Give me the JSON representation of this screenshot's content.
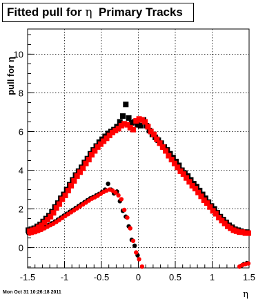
{
  "title": {
    "prefix": "Fitted pull for ",
    "symbol": "η",
    "suffix": "  Primary Tracks"
  },
  "datestamp": "Mon Oct 31 10:26:18 2011",
  "chart_data": {
    "type": "scatter",
    "title": "Fitted pull for η  Primary Tracks",
    "xlabel": "η",
    "ylabel": "pull for η",
    "xlim": [
      -1.5,
      1.5
    ],
    "ylim": [
      -1.05,
      11.3
    ],
    "grid": true,
    "xticks": [
      -1.5,
      -1,
      -0.5,
      0,
      0.5,
      1,
      1.5
    ],
    "yticks": [
      0,
      2,
      4,
      6,
      8,
      10
    ],
    "colors": {
      "black": "#000000",
      "red": "#ff0000"
    },
    "series": [
      {
        "color": "black",
        "marker": "square",
        "x": [
          -1.49,
          -1.45,
          -1.41,
          -1.37,
          -1.33,
          -1.29,
          -1.25,
          -1.21,
          -1.17,
          -1.13,
          -1.09,
          -1.05,
          -1.01,
          -0.97,
          -0.93,
          -0.89,
          -0.85,
          -0.81,
          -0.77,
          -0.73,
          -0.69,
          -0.65,
          -0.61,
          -0.57,
          -0.53,
          -0.49,
          -0.45,
          -0.41,
          -0.37,
          -0.33,
          -0.29,
          -0.25,
          -0.21,
          -0.17,
          -0.13,
          -0.09,
          -0.05,
          -0.01,
          0.03,
          0.07,
          0.11,
          0.15,
          0.19,
          0.23,
          0.27,
          0.31,
          0.35,
          0.39,
          0.43,
          0.47,
          0.51,
          0.55,
          0.59,
          0.63,
          0.67,
          0.71,
          0.75,
          0.79,
          0.83,
          0.87,
          0.91,
          0.95,
          0.99,
          1.03,
          1.07,
          1.11,
          1.15,
          1.19,
          1.23,
          1.27,
          1.31,
          1.35,
          1.39,
          1.43,
          1.47
        ],
        "y": [
          0.9,
          0.95,
          1.0,
          1.1,
          1.2,
          1.35,
          1.5,
          1.65,
          1.85,
          2.1,
          2.3,
          2.55,
          2.75,
          3.0,
          3.25,
          3.5,
          3.75,
          3.95,
          4.15,
          4.4,
          4.6,
          4.85,
          5.05,
          5.25,
          5.45,
          5.6,
          5.75,
          5.9,
          6.0,
          6.1,
          6.25,
          6.5,
          6.8,
          7.4,
          6.7,
          6.45,
          6.5,
          6.35,
          6.3,
          6.6,
          6.3,
          6.05,
          5.85,
          5.7,
          5.55,
          5.4,
          5.2,
          5.05,
          4.85,
          4.65,
          4.45,
          4.25,
          4.0,
          3.85,
          3.7,
          3.5,
          3.3,
          3.15,
          2.95,
          2.75,
          2.55,
          2.35,
          2.15,
          2.0,
          1.8,
          1.6,
          1.45,
          1.3,
          1.15,
          1.05,
          0.95,
          0.9,
          0.85,
          0.8,
          0.8
        ]
      },
      {
        "color": "black",
        "marker": "circle",
        "x": [
          -1.49,
          -1.45,
          -1.41,
          -1.37,
          -1.33,
          -1.29,
          -1.25,
          -1.21,
          -1.17,
          -1.13,
          -1.09,
          -1.05,
          -1.01,
          -0.97,
          -0.93,
          -0.89,
          -0.85,
          -0.81,
          -0.77,
          -0.73,
          -0.69,
          -0.65,
          -0.61,
          -0.57,
          -0.53,
          -0.49,
          -0.45,
          -0.41,
          -0.37,
          -0.33,
          -0.29,
          -0.25,
          -0.21,
          -0.17,
          -0.13,
          -0.09,
          -0.05,
          -0.01,
          1.39,
          1.43,
          1.47
        ],
        "y": [
          0.75,
          0.78,
          0.82,
          0.88,
          0.95,
          1.02,
          1.1,
          1.18,
          1.26,
          1.35,
          1.45,
          1.55,
          1.65,
          1.75,
          1.85,
          1.95,
          2.05,
          2.15,
          2.25,
          2.35,
          2.45,
          2.55,
          2.62,
          2.7,
          2.78,
          2.88,
          3.0,
          3.3,
          3.0,
          2.8,
          2.9,
          2.4,
          1.9,
          1.6,
          1.1,
          0.4,
          0.1,
          -0.4,
          -0.95,
          -0.85,
          -0.8
        ]
      },
      {
        "color": "red",
        "marker": "square",
        "x": [
          -1.47,
          -1.43,
          -1.39,
          -1.35,
          -1.31,
          -1.27,
          -1.23,
          -1.19,
          -1.15,
          -1.11,
          -1.07,
          -1.03,
          -0.99,
          -0.95,
          -0.91,
          -0.87,
          -0.83,
          -0.79,
          -0.75,
          -0.71,
          -0.67,
          -0.63,
          -0.59,
          -0.55,
          -0.51,
          -0.47,
          -0.43,
          -0.39,
          -0.35,
          -0.31,
          -0.27,
          -0.23,
          -0.19,
          -0.15,
          -0.11,
          -0.07,
          -0.03,
          0.01,
          0.05,
          0.09,
          0.13,
          0.17,
          0.21,
          0.25,
          0.29,
          0.33,
          0.37,
          0.41,
          0.45,
          0.49,
          0.53,
          0.57,
          0.61,
          0.65,
          0.69,
          0.73,
          0.77,
          0.81,
          0.85,
          0.89,
          0.93,
          0.97,
          1.01,
          1.05,
          1.09,
          1.13,
          1.17,
          1.21,
          1.25,
          1.29,
          1.33,
          1.37,
          1.41,
          1.45,
          1.49
        ],
        "y": [
          0.85,
          0.9,
          0.95,
          1.05,
          1.15,
          1.3,
          1.45,
          1.6,
          1.8,
          2.05,
          2.25,
          2.5,
          2.7,
          2.95,
          3.2,
          3.45,
          3.7,
          3.9,
          4.1,
          4.35,
          4.55,
          4.8,
          5.0,
          5.2,
          5.35,
          5.5,
          5.65,
          5.8,
          5.95,
          6.05,
          6.15,
          6.3,
          6.4,
          6.35,
          6.2,
          6.1,
          6.55,
          6.65,
          6.6,
          6.5,
          6.25,
          6.0,
          5.85,
          5.6,
          5.4,
          5.2,
          5.0,
          4.75,
          4.55,
          4.35,
          4.15,
          3.95,
          3.8,
          3.6,
          3.4,
          3.2,
          3.05,
          2.85,
          2.65,
          2.45,
          2.3,
          2.1,
          1.9,
          1.75,
          1.55,
          1.4,
          1.25,
          1.1,
          1.0,
          0.9,
          0.85,
          0.8,
          0.8,
          0.75,
          0.75
        ]
      },
      {
        "color": "red",
        "marker": "circle",
        "x": [
          -1.47,
          -1.43,
          -1.39,
          -1.35,
          -1.31,
          -1.27,
          -1.23,
          -1.19,
          -1.15,
          -1.11,
          -1.07,
          -1.03,
          -0.99,
          -0.95,
          -0.91,
          -0.87,
          -0.83,
          -0.79,
          -0.75,
          -0.71,
          -0.67,
          -0.63,
          -0.59,
          -0.55,
          -0.51,
          -0.47,
          -0.43,
          -0.39,
          -0.35,
          -0.31,
          -0.27,
          -0.23,
          -0.19,
          -0.15,
          -0.11,
          -0.07,
          -0.03,
          0.01,
          0.05,
          1.37,
          1.41,
          1.45,
          1.49
        ],
        "y": [
          0.72,
          0.76,
          0.8,
          0.86,
          0.92,
          1.0,
          1.08,
          1.16,
          1.24,
          1.33,
          1.43,
          1.53,
          1.63,
          1.73,
          1.83,
          1.93,
          2.03,
          2.13,
          2.23,
          2.33,
          2.43,
          2.53,
          2.6,
          2.68,
          2.78,
          2.88,
          2.95,
          3.0,
          2.95,
          2.85,
          2.7,
          2.5,
          1.95,
          1.55,
          1.0,
          0.35,
          -0.25,
          -0.6,
          -0.98,
          -0.98,
          -0.9,
          -0.85,
          -0.82
        ]
      }
    ]
  }
}
